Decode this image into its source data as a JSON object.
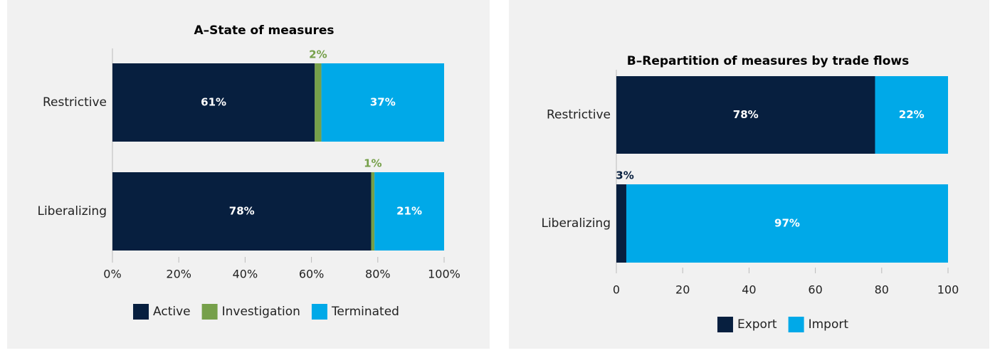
{
  "chart_data": [
    {
      "type": "bar",
      "orientation": "horizontal",
      "stacked": true,
      "title": "A–State of measures",
      "categories": [
        "Restrictive",
        "Liberalizing"
      ],
      "series": [
        {
          "name": "Active",
          "color": "#071f3f",
          "values": [
            61,
            78
          ],
          "value_labels": [
            "61%",
            "78%"
          ]
        },
        {
          "name": "Investigation",
          "color": "#76a04a",
          "values": [
            2,
            1
          ],
          "value_labels": [
            "2%",
            "1%"
          ]
        },
        {
          "name": "Terminated",
          "color": "#00a9e8",
          "values": [
            37,
            21
          ],
          "value_labels": [
            "37%",
            "21%"
          ]
        }
      ],
      "xlim": [
        0,
        100
      ],
      "xticks": [
        {
          "value": 0,
          "label": "0%"
        },
        {
          "value": 20,
          "label": "20%"
        },
        {
          "value": 40,
          "label": "40%"
        },
        {
          "value": 60,
          "label": "60%"
        },
        {
          "value": 80,
          "label": "80%"
        },
        {
          "value": 100,
          "label": "100%"
        }
      ],
      "legend": "bottom"
    },
    {
      "type": "bar",
      "orientation": "horizontal",
      "stacked": true,
      "title": "B–Repartition of measures by trade flows",
      "categories": [
        "Restrictive",
        "Liberalizing"
      ],
      "series": [
        {
          "name": "Export",
          "color": "#071f3f",
          "values": [
            78,
            3
          ],
          "value_labels": [
            "78%",
            "3%"
          ]
        },
        {
          "name": "Import",
          "color": "#00a9e8",
          "values": [
            22,
            97
          ],
          "value_labels": [
            "22%",
            "97%"
          ]
        }
      ],
      "xlim": [
        0,
        100
      ],
      "xticks": [
        0,
        20,
        40,
        60,
        80,
        100
      ],
      "legend": "bottom"
    }
  ]
}
